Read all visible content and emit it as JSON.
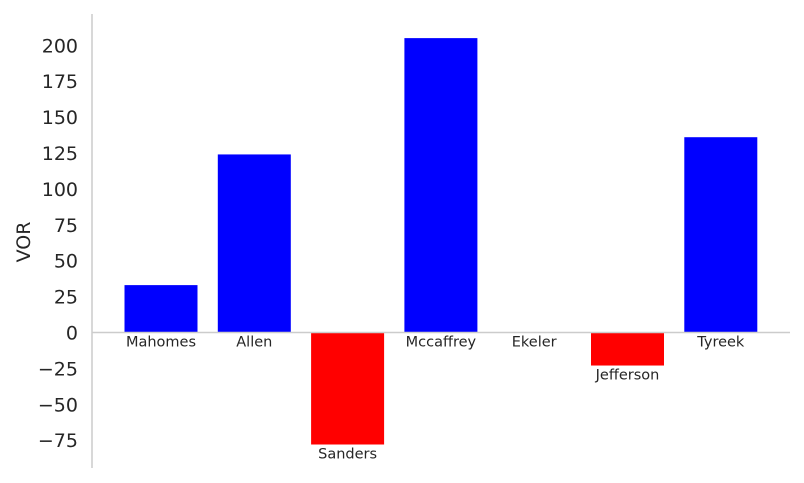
{
  "chart_data": {
    "type": "bar",
    "categories": [
      "Mahomes",
      "Allen",
      "Sanders",
      "Mccaffrey",
      "Ekeler",
      "Jefferson",
      "Tyreek"
    ],
    "values": [
      33,
      124,
      -78,
      205,
      0,
      -23,
      136
    ],
    "ylabel": "VOR",
    "yticks": [
      200,
      175,
      150,
      125,
      100,
      75,
      50,
      25,
      0,
      -25,
      -50,
      -75
    ],
    "ytick_labels": [
      "200",
      "175",
      "150",
      "125",
      "100",
      "75",
      "50",
      "25",
      "0",
      "−25",
      "−50",
      "−75"
    ],
    "ylim": [
      -94,
      220
    ],
    "grid": false,
    "colors": {
      "positive": "#0000ff",
      "negative": "#ff0000",
      "axis": "#cccccc"
    }
  }
}
